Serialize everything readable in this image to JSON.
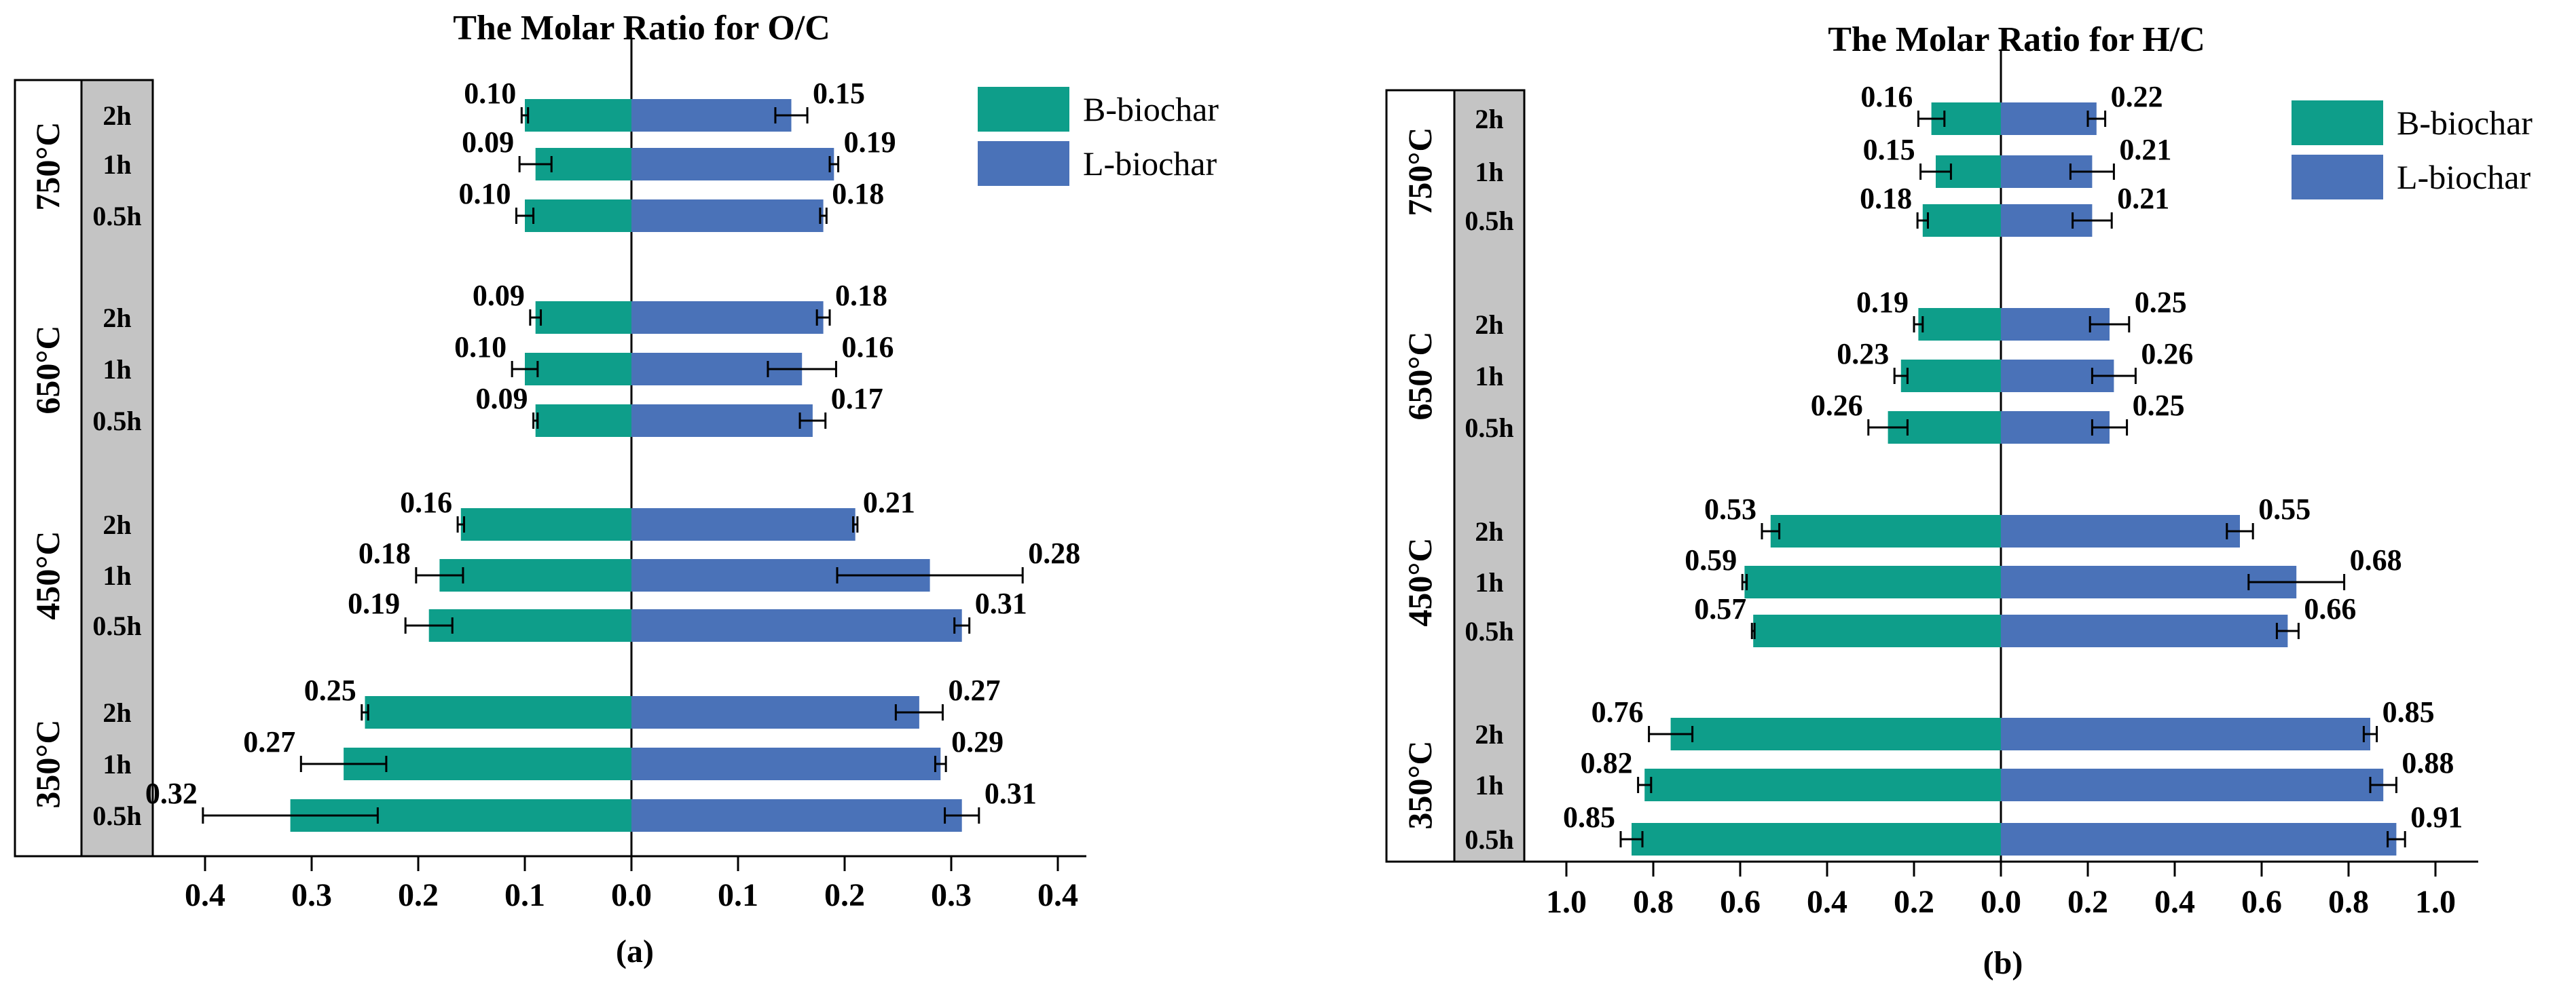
{
  "colors": {
    "b_biochar": "#0E9E8A",
    "l_biochar": "#4A72B8",
    "sidebar_fill": "#C4C4C4",
    "axis": "#000000"
  },
  "chart_data": [
    {
      "type": "bar",
      "orientation": "horizontal-diverging",
      "title": "The Molar Ratio for O/C",
      "caption": "(a)",
      "xlim": [
        0,
        0.4
      ],
      "ticks": [
        0.4,
        0.3,
        0.2,
        0.1,
        0.0,
        0.1,
        0.2,
        0.3,
        0.4
      ],
      "tick_labels": [
        "0.4",
        "0.3",
        "0.2",
        "0.1",
        "0.0",
        "0.1",
        "0.2",
        "0.3",
        "0.4"
      ],
      "legend": [
        "B-biochar",
        "L-biochar"
      ],
      "legend_position": "top-right",
      "groups": [
        {
          "temperature": "750°C",
          "durations": [
            "2h",
            "1h",
            "0.5h"
          ],
          "series": [
            {
              "name": "B-biochar",
              "values": [
                0.1,
                0.09,
                0.1
              ],
              "labels": [
                "0.10",
                "0.09",
                "0.10"
              ],
              "errors": [
                0.003,
                0.015,
                0.008
              ]
            },
            {
              "name": "L-biochar",
              "values": [
                0.15,
                0.19,
                0.18
              ],
              "labels": [
                "0.15",
                "0.19",
                "0.18"
              ],
              "errors": [
                0.015,
                0.004,
                0.003
              ]
            }
          ]
        },
        {
          "temperature": "650°C",
          "durations": [
            "2h",
            "1h",
            "0.5h"
          ],
          "series": [
            {
              "name": "B-biochar",
              "values": [
                0.09,
                0.1,
                0.09
              ],
              "labels": [
                "0.09",
                "0.10",
                "0.09"
              ],
              "errors": [
                0.005,
                0.012,
                0.002
              ]
            },
            {
              "name": "L-biochar",
              "values": [
                0.18,
                0.16,
                0.17
              ],
              "labels": [
                "0.18",
                "0.16",
                "0.17"
              ],
              "errors": [
                0.006,
                0.032,
                0.012
              ]
            }
          ]
        },
        {
          "temperature": "450°C",
          "durations": [
            "2h",
            "1h",
            "0.5h"
          ],
          "series": [
            {
              "name": "B-biochar",
              "values": [
                0.16,
                0.18,
                0.19
              ],
              "labels": [
                "0.16",
                "0.18",
                "0.19"
              ],
              "errors": [
                0.003,
                0.022,
                0.022
              ]
            },
            {
              "name": "L-biochar",
              "values": [
                0.21,
                0.28,
                0.31
              ],
              "labels": [
                "0.21",
                "0.28",
                "0.31"
              ],
              "errors": [
                0.002,
                0.087,
                0.007
              ]
            }
          ]
        },
        {
          "temperature": "350°C",
          "durations": [
            "2h",
            "1h",
            "0.5h"
          ],
          "series": [
            {
              "name": "B-biochar",
              "values": [
                0.25,
                0.27,
                0.32
              ],
              "labels": [
                "0.25",
                "0.27",
                "0.32"
              ],
              "errors": [
                0.003,
                0.04,
                0.082
              ]
            },
            {
              "name": "L-biochar",
              "values": [
                0.27,
                0.29,
                0.31
              ],
              "labels": [
                "0.27",
                "0.29",
                "0.31"
              ],
              "errors": [
                0.022,
                0.005,
                0.016
              ]
            }
          ]
        }
      ]
    },
    {
      "type": "bar",
      "orientation": "horizontal-diverging",
      "title": "The Molar Ratio for H/C",
      "caption": "(b)",
      "xlim": [
        0,
        1.0
      ],
      "ticks": [
        1.0,
        0.8,
        0.6,
        0.4,
        0.2,
        0.0,
        0.2,
        0.4,
        0.6,
        0.8,
        1.0
      ],
      "tick_labels": [
        "1.0",
        "0.8",
        "0.6",
        "0.4",
        "0.2",
        "0.0",
        "0.2",
        "0.4",
        "0.6",
        "0.8",
        "1.0"
      ],
      "legend": [
        "B-biochar",
        "L-biochar"
      ],
      "legend_position": "top-right",
      "groups": [
        {
          "temperature": "750°C",
          "durations": [
            "2h",
            "1h",
            "0.5h"
          ],
          "series": [
            {
              "name": "B-biochar",
              "values": [
                0.16,
                0.15,
                0.18
              ],
              "labels": [
                "0.16",
                "0.15",
                "0.18"
              ],
              "errors": [
                0.03,
                0.035,
                0.012
              ]
            },
            {
              "name": "L-biochar",
              "values": [
                0.22,
                0.21,
                0.21
              ],
              "labels": [
                "0.22",
                "0.21",
                "0.21"
              ],
              "errors": [
                0.02,
                0.05,
                0.045
              ]
            }
          ]
        },
        {
          "temperature": "650°C",
          "durations": [
            "2h",
            "1h",
            "0.5h"
          ],
          "series": [
            {
              "name": "B-biochar",
              "values": [
                0.19,
                0.23,
                0.26
              ],
              "labels": [
                "0.19",
                "0.23",
                "0.26"
              ],
              "errors": [
                0.01,
                0.015,
                0.045
              ]
            },
            {
              "name": "L-biochar",
              "values": [
                0.25,
                0.26,
                0.25
              ],
              "labels": [
                "0.25",
                "0.26",
                "0.25"
              ],
              "errors": [
                0.045,
                0.05,
                0.04
              ]
            }
          ]
        },
        {
          "temperature": "450°C",
          "durations": [
            "2h",
            "1h",
            "0.5h"
          ],
          "series": [
            {
              "name": "B-biochar",
              "values": [
                0.53,
                0.59,
                0.57
              ],
              "labels": [
                "0.53",
                "0.59",
                "0.57"
              ],
              "errors": [
                0.02,
                0.005,
                0.003
              ]
            },
            {
              "name": "L-biochar",
              "values": [
                0.55,
                0.68,
                0.66
              ],
              "labels": [
                "0.55",
                "0.68",
                "0.66"
              ],
              "errors": [
                0.03,
                0.11,
                0.025
              ]
            }
          ]
        },
        {
          "temperature": "350°C",
          "durations": [
            "2h",
            "1h",
            "0.5h"
          ],
          "series": [
            {
              "name": "B-biochar",
              "values": [
                0.76,
                0.82,
                0.85
              ],
              "labels": [
                "0.76",
                "0.82",
                "0.85"
              ],
              "errors": [
                0.05,
                0.015,
                0.025
              ]
            },
            {
              "name": "L-biochar",
              "values": [
                0.85,
                0.88,
                0.91
              ],
              "labels": [
                "0.85",
                "0.88",
                "0.91"
              ],
              "errors": [
                0.015,
                0.03,
                0.02
              ]
            }
          ]
        }
      ]
    }
  ]
}
